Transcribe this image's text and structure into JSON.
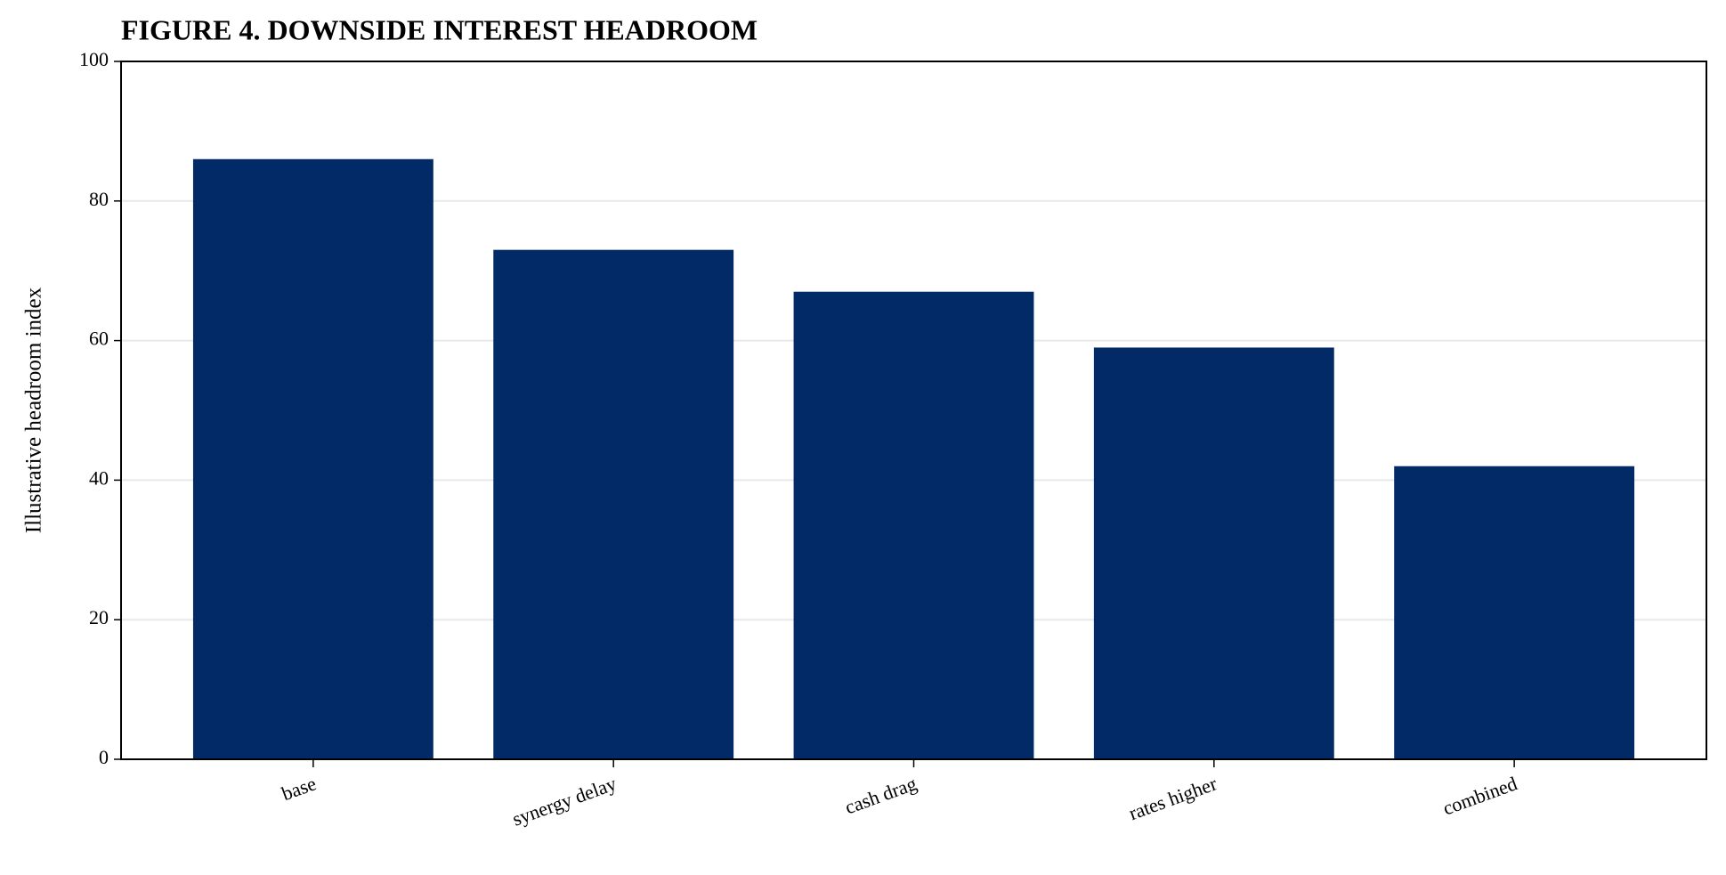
{
  "chart_data": {
    "type": "bar",
    "title": "FIGURE 4. DOWNSIDE INTEREST HEADROOM",
    "ylabel": "Illustrative headroom index",
    "categories": [
      "base",
      "synergy delay",
      "cash drag",
      "rates higher",
      "combined"
    ],
    "values": [
      86,
      73,
      67,
      59,
      42
    ],
    "color": "#022a66",
    "ylim": [
      0,
      100
    ],
    "yticks": [
      0,
      20,
      40,
      60,
      80,
      100
    ],
    "grid": true
  }
}
